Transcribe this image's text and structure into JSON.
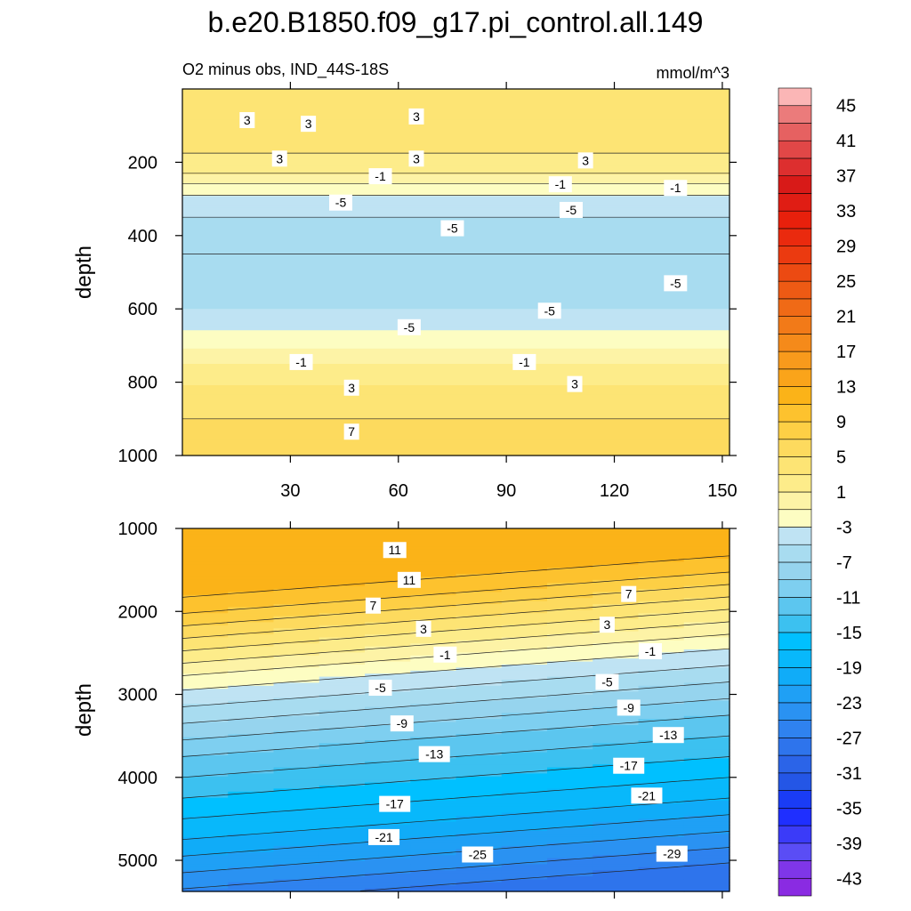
{
  "figure": {
    "title": "b.e20.B1850.f09_g17.pi_control.all.149",
    "subtitle_left": "O2 minus obs, IND_44S-18S",
    "units": "mmol/m^3"
  },
  "chart_data": [
    {
      "type": "heatmap",
      "panel": "upper",
      "ylabel": "depth",
      "xlabel": "",
      "xlim": [
        0,
        150
      ],
      "ylim": [
        1000,
        0
      ],
      "xticks": [
        30,
        60,
        90,
        120,
        150
      ],
      "yticks": [
        200,
        400,
        600,
        800,
        1000
      ],
      "depth_profile": [
        {
          "depth": 0,
          "value": 4.5
        },
        {
          "depth": 50,
          "value": 4.8
        },
        {
          "depth": 100,
          "value": 4.2
        },
        {
          "depth": 150,
          "value": 3.5
        },
        {
          "depth": 200,
          "value": 2.5
        },
        {
          "depth": 240,
          "value": 0.5
        },
        {
          "depth": 270,
          "value": -2.0
        },
        {
          "depth": 300,
          "value": -3.5
        },
        {
          "depth": 350,
          "value": -5.0
        },
        {
          "depth": 400,
          "value": -6.0
        },
        {
          "depth": 450,
          "value": -7.0
        },
        {
          "depth": 500,
          "value": -6.8
        },
        {
          "depth": 550,
          "value": -6.0
        },
        {
          "depth": 600,
          "value": -5.0
        },
        {
          "depth": 650,
          "value": -3.5
        },
        {
          "depth": 700,
          "value": -1.5
        },
        {
          "depth": 740,
          "value": 0.5
        },
        {
          "depth": 790,
          "value": 2.5
        },
        {
          "depth": 850,
          "value": 4.0
        },
        {
          "depth": 900,
          "value": 5.0
        },
        {
          "depth": 950,
          "value": 6.0
        },
        {
          "depth": 1000,
          "value": 7.0
        }
      ],
      "contour_labels": [
        {
          "text": "3",
          "x": 18,
          "depth": 85
        },
        {
          "text": "3",
          "x": 35,
          "depth": 95
        },
        {
          "text": "3",
          "x": 65,
          "depth": 75
        },
        {
          "text": "3",
          "x": 27,
          "depth": 190
        },
        {
          "text": "3",
          "x": 65,
          "depth": 190
        },
        {
          "text": "3",
          "x": 112,
          "depth": 195
        },
        {
          "text": "-1",
          "x": 55,
          "depth": 238
        },
        {
          "text": "-1",
          "x": 105,
          "depth": 260
        },
        {
          "text": "-1",
          "x": 137,
          "depth": 270
        },
        {
          "text": "-5",
          "x": 44,
          "depth": 310
        },
        {
          "text": "-5",
          "x": 108,
          "depth": 330
        },
        {
          "text": "-5",
          "x": 75,
          "depth": 380
        },
        {
          "text": "-5",
          "x": 137,
          "depth": 530
        },
        {
          "text": "-5",
          "x": 102,
          "depth": 605
        },
        {
          "text": "-5",
          "x": 63,
          "depth": 650
        },
        {
          "text": "-1",
          "x": 33,
          "depth": 745
        },
        {
          "text": "-1",
          "x": 95,
          "depth": 745
        },
        {
          "text": "3",
          "x": 47,
          "depth": 815
        },
        {
          "text": "3",
          "x": 109,
          "depth": 805
        },
        {
          "text": "7",
          "x": 47,
          "depth": 935
        }
      ]
    },
    {
      "type": "heatmap",
      "panel": "lower",
      "ylabel": "depth",
      "xlabel": "",
      "xlim": [
        0,
        150
      ],
      "ylim": [
        5375,
        1000
      ],
      "xticks": [
        30,
        60,
        90,
        120,
        150
      ],
      "yticks": [
        1000,
        2000,
        3000,
        4000,
        5000
      ],
      "depth_profile": [
        {
          "depth": 1000,
          "value": 12.0
        },
        {
          "depth": 1400,
          "value": 12.5
        },
        {
          "depth": 1700,
          "value": 10.0
        },
        {
          "depth": 2000,
          "value": 6.0
        },
        {
          "depth": 2300,
          "value": 2.0
        },
        {
          "depth": 2600,
          "value": -2.0
        },
        {
          "depth": 3000,
          "value": -6.0
        },
        {
          "depth": 3500,
          "value": -11.0
        },
        {
          "depth": 4000,
          "value": -15.0
        },
        {
          "depth": 4500,
          "value": -19.0
        },
        {
          "depth": 5000,
          "value": -24.0
        },
        {
          "depth": 5375,
          "value": -28.0
        }
      ],
      "contour_labels": [
        {
          "text": "11",
          "x": 59,
          "depth": 1260
        },
        {
          "text": "11",
          "x": 63,
          "depth": 1620
        },
        {
          "text": "7",
          "x": 53,
          "depth": 1930
        },
        {
          "text": "7",
          "x": 124,
          "depth": 1790
        },
        {
          "text": "3",
          "x": 67,
          "depth": 2210
        },
        {
          "text": "3",
          "x": 118,
          "depth": 2160
        },
        {
          "text": "-1",
          "x": 73,
          "depth": 2520
        },
        {
          "text": "-1",
          "x": 130,
          "depth": 2480
        },
        {
          "text": "-5",
          "x": 55,
          "depth": 2920
        },
        {
          "text": "-5",
          "x": 118,
          "depth": 2850
        },
        {
          "text": "-9",
          "x": 61,
          "depth": 3350
        },
        {
          "text": "-9",
          "x": 124,
          "depth": 3160
        },
        {
          "text": "-13",
          "x": 70,
          "depth": 3720
        },
        {
          "text": "-13",
          "x": 135,
          "depth": 3490
        },
        {
          "text": "-17",
          "x": 59,
          "depth": 4320
        },
        {
          "text": "-17",
          "x": 124,
          "depth": 3860
        },
        {
          "text": "-21",
          "x": 56,
          "depth": 4720
        },
        {
          "text": "-21",
          "x": 129,
          "depth": 4220
        },
        {
          "text": "-25",
          "x": 82,
          "depth": 4930
        },
        {
          "text": "-29",
          "x": 136,
          "depth": 4920
        }
      ]
    }
  ],
  "colorbar": {
    "levels": [
      -45,
      -43,
      -41,
      -39,
      -37,
      -35,
      -33,
      -31,
      -29,
      -27,
      -25,
      -23,
      -21,
      -19,
      -17,
      -15,
      -13,
      -11,
      -9,
      -7,
      -5,
      -3,
      -1,
      1,
      3,
      5,
      7,
      9,
      11,
      13,
      15,
      17,
      19,
      21,
      23,
      25,
      27,
      29,
      31,
      33,
      35,
      37,
      39,
      41,
      43,
      45,
      47
    ],
    "labels": [
      "45",
      "41",
      "37",
      "33",
      "29",
      "25",
      "21",
      "17",
      "13",
      "9",
      "5",
      "1",
      "-3",
      "-7",
      "-11",
      "-15",
      "-19",
      "-23",
      "-27",
      "-31",
      "-35",
      "-39",
      "-43"
    ],
    "colors_bottom_to_top": [
      "#8a2be2",
      "#7f36e8",
      "#5a4df5",
      "#3b3bf8",
      "#1f2fff",
      "#1a3cf5",
      "#2456e6",
      "#2b64e8",
      "#2e74ec",
      "#2f82ef",
      "#2a92f2",
      "#1fa0f5",
      "#10acf8",
      "#08b8fb",
      "#00c0ff",
      "#3cc1f0",
      "#5cc6ef",
      "#7ecff0",
      "#96d4ee",
      "#a8dcf0",
      "#bfe3f3",
      "#fdfdc2",
      "#fdf3a6",
      "#fdec8a",
      "#fde474",
      "#fdda5e",
      "#fdcf45",
      "#fdc22e",
      "#fbb318",
      "#faa41a",
      "#f89a1c",
      "#f58a1a",
      "#f27a18",
      "#f06a16",
      "#ee5a14",
      "#ec4a12",
      "#eb3a10",
      "#ea2a0e",
      "#e8200c",
      "#e01d14",
      "#d81a18",
      "#dd2f2f",
      "#e14747",
      "#e66161",
      "#eb7b7b",
      "#fbb6b6"
    ]
  }
}
